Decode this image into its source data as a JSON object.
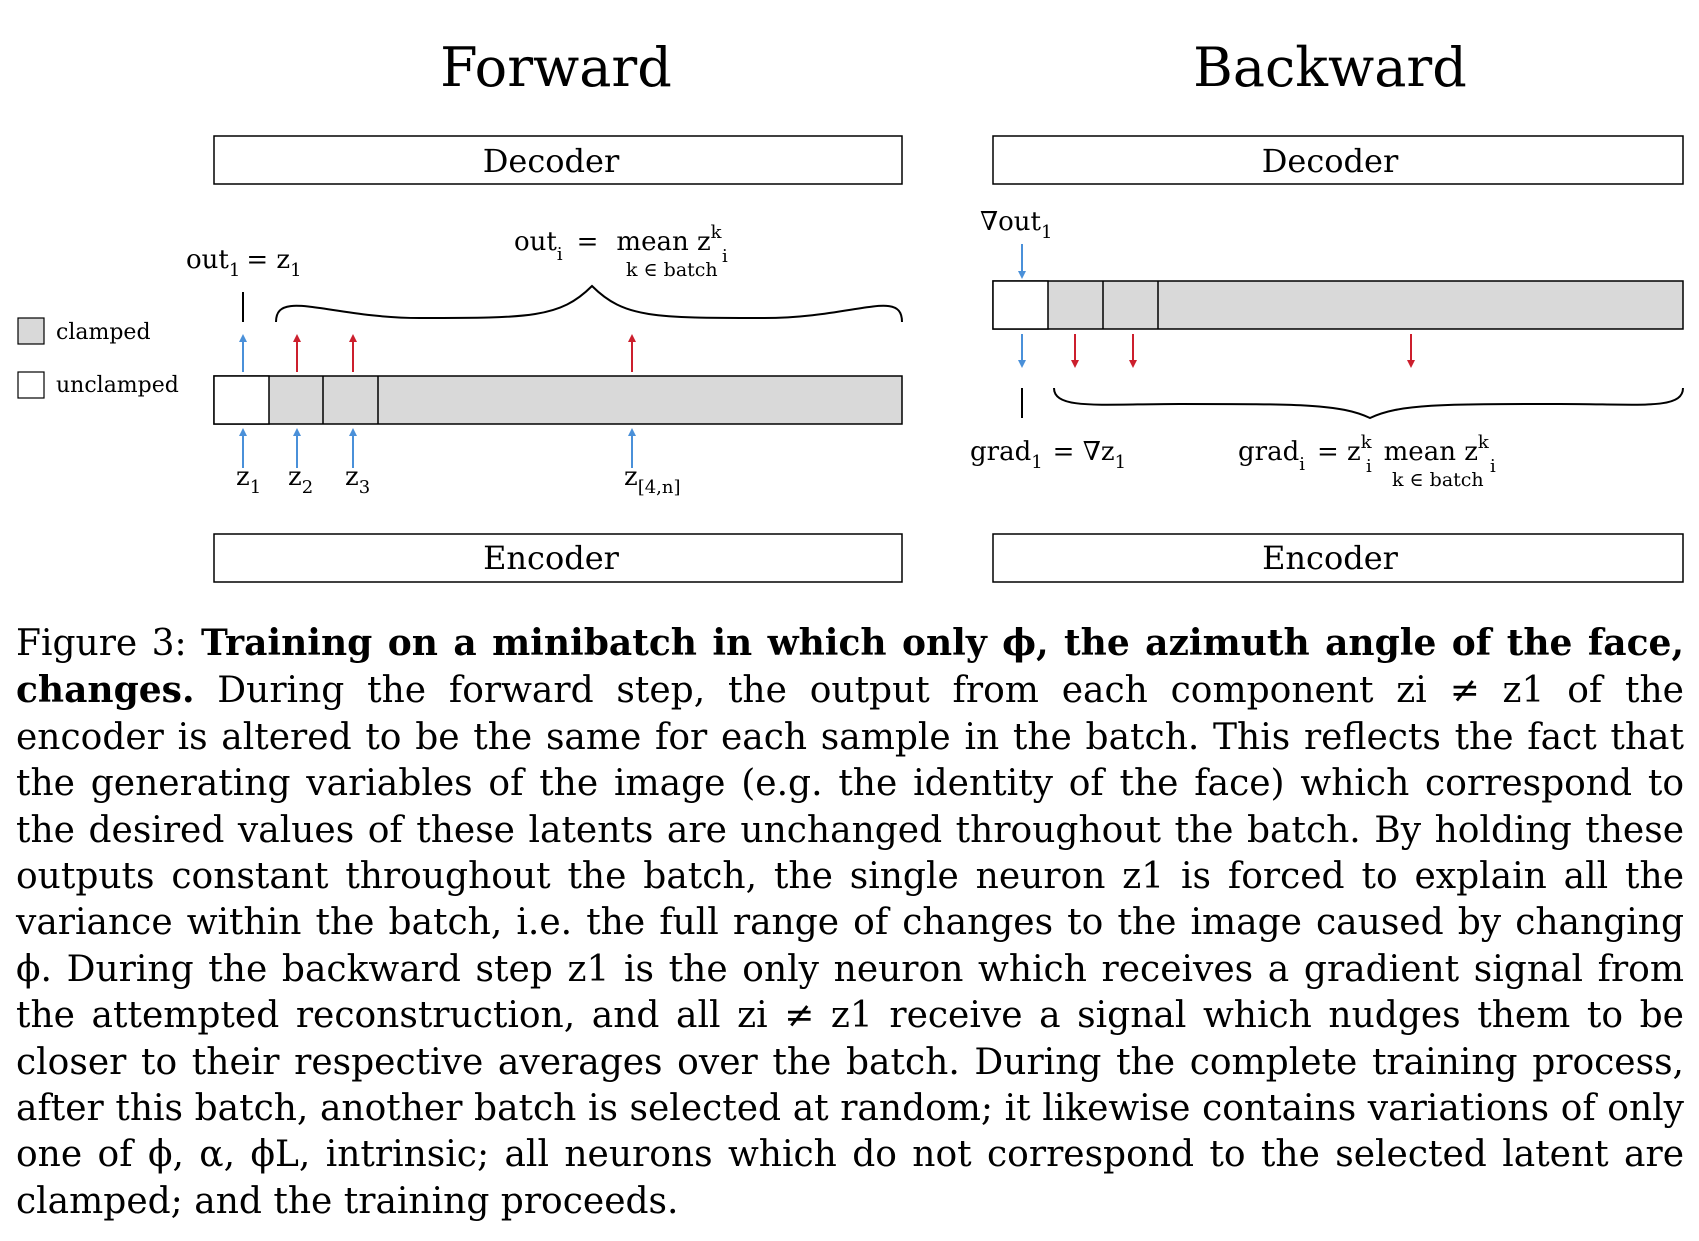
{
  "figure": {
    "forward_title": "Forward",
    "backward_title": "Backward",
    "decoder_label": "Decoder",
    "encoder_label": "Encoder",
    "legend": {
      "clamped": "clamped",
      "unclamped": "unclamped"
    },
    "forward": {
      "out1_eq": "out",
      "out1_sub": "1",
      "out1_rhs": "= z",
      "out1_rhs_sub": "1",
      "outi": "out",
      "outi_sub": "i",
      "outi_eq": "=",
      "mean": "mean z",
      "mean_sup": "k",
      "mean_sub": "i",
      "mean_under": "k ∈ batch",
      "z_labels": [
        {
          "base": "z",
          "sub": "1"
        },
        {
          "base": "z",
          "sub": "2"
        },
        {
          "base": "z",
          "sub": "3"
        },
        {
          "base": "z",
          "sub": "[4,n]"
        }
      ]
    },
    "backward": {
      "grad_out": "∇out",
      "grad_out_sub": "1",
      "grad1": "grad",
      "grad1_sub": "1",
      "grad1_rhs": "= ∇z",
      "grad1_rhs_sub": "1",
      "gradi": "grad",
      "gradi_sub": "i",
      "gradi_eq": "= z",
      "gradi_sup": "k",
      "gradi_zsub": "i",
      "gradi_mean": "mean z",
      "gradi_mean_sup": "k",
      "gradi_mean_sub": "i",
      "gradi_under": "k ∈ batch"
    },
    "colors": {
      "clamped_fill": "#d9d9d9",
      "blue_arrow": "#4a90d9",
      "red_arrow": "#cc1f2d"
    }
  },
  "caption": {
    "label": "Figure 3:",
    "title": "Training on a minibatch in which only ϕ, the azimuth angle of the face, changes.",
    "body": "During the forward step, the output from each component zi ≠ z1 of the encoder is altered to be the same for each sample in the batch. This reflects the fact that the generating variables of the image (e.g. the identity of the face) which correspond to the desired values of these latents are unchanged throughout the batch. By holding these outputs constant throughout the batch, the single neuron z1 is forced to explain all the variance within the batch, i.e. the full range of changes to the image caused by changing ϕ. During the backward step z1 is the only neuron which receives a gradient signal from the attempted reconstruction, and all zi ≠ z1 receive a signal which nudges them to be closer to their respective averages over the batch. During the complete training process, after this batch, another batch is selected at random; it likewise contains variations of only one of ϕ, α, ϕL, intrinsic; all neurons which do not correspond to the selected latent are clamped; and the training proceeds."
  }
}
